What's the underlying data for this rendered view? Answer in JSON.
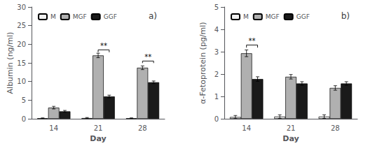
{
  "chart_data": [
    {
      "type": "bar",
      "title": "a)",
      "xlabel": "Day",
      "ylabel": "Albumin (ng/ml)",
      "categories": [
        "14",
        "21",
        "28"
      ],
      "series": [
        {
          "name": "M",
          "color": "#f0f0f0",
          "values": [
            0.15,
            0.2,
            0.15
          ],
          "errors": [
            0.1,
            0.15,
            0.1
          ]
        },
        {
          "name": "MGF",
          "color": "#b0b0b0",
          "values": [
            3.0,
            17.0,
            13.7
          ],
          "errors": [
            0.35,
            0.6,
            0.5
          ]
        },
        {
          "name": "GGF",
          "color": "#1a1a1a",
          "values": [
            2.0,
            6.0,
            9.8
          ],
          "errors": [
            0.25,
            0.35,
            0.35
          ]
        }
      ],
      "annotations": [
        {
          "category": "21",
          "from": "MGF",
          "to": "GGF",
          "y": 18.5,
          "label": "**"
        },
        {
          "category": "28",
          "from": "MGF",
          "to": "GGF",
          "y": 15.5,
          "label": "**"
        }
      ],
      "ylim": [
        0,
        30
      ],
      "yticks": [
        0,
        5,
        10,
        15,
        20,
        25,
        30
      ],
      "grid": false,
      "legend": "upper left"
    },
    {
      "type": "bar",
      "title": "b)",
      "xlabel": "Day",
      "ylabel": "α-Fetoprotein (pg/ml)",
      "categories": [
        "14",
        "21",
        "28"
      ],
      "series": [
        {
          "name": "M",
          "color": "#f0f0f0",
          "values": [
            0.08,
            0.1,
            0.1
          ],
          "errors": [
            0.07,
            0.08,
            0.08
          ]
        },
        {
          "name": "MGF",
          "color": "#b0b0b0",
          "values": [
            2.93,
            1.88,
            1.38
          ],
          "errors": [
            0.15,
            0.1,
            0.1
          ]
        },
        {
          "name": "GGF",
          "color": "#1a1a1a",
          "values": [
            1.78,
            1.58,
            1.58
          ],
          "errors": [
            0.1,
            0.08,
            0.08
          ]
        }
      ],
      "annotations": [
        {
          "category": "14",
          "from": "MGF",
          "to": "GGF",
          "y": 3.3,
          "label": "**"
        }
      ],
      "ylim": [
        0,
        5
      ],
      "yticks": [
        0,
        1,
        2,
        3,
        4,
        5
      ],
      "grid": false,
      "legend": "upper left"
    }
  ]
}
